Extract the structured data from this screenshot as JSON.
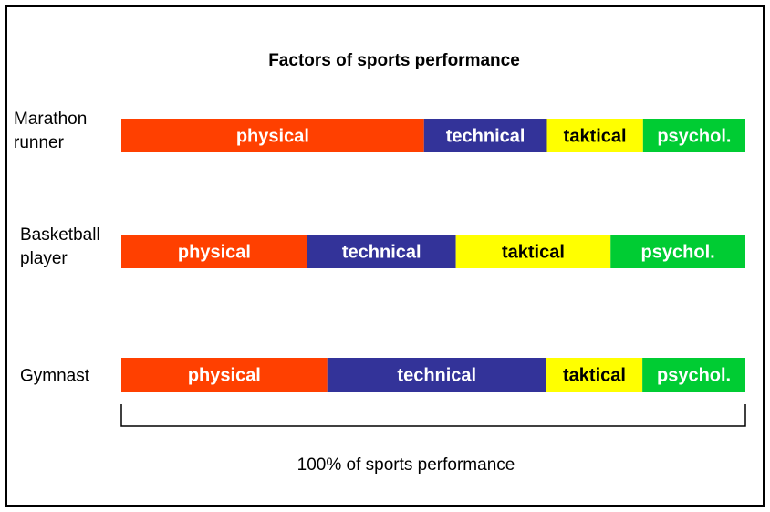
{
  "chart_data": {
    "type": "bar",
    "orientation": "horizontal",
    "stacked": true,
    "title": "Factors of sports performance",
    "caption": "100% of sports performance",
    "grid": false,
    "legend": "none",
    "categories": [
      {
        "label_lines": [
          "Marathon",
          "runner"
        ]
      },
      {
        "label_lines": [
          "Basketball",
          "player"
        ]
      },
      {
        "label_lines": [
          "Gymnast"
        ]
      }
    ],
    "series": [
      {
        "name": "physical",
        "label": "physical",
        "color": "#FF4000",
        "text_color": "#FFFFFF",
        "values": [
          48.5,
          29.8,
          33.0
        ]
      },
      {
        "name": "technical",
        "label": "technical",
        "color": "#333399",
        "text_color": "#FFFFFF",
        "values": [
          19.7,
          23.8,
          35.1
        ]
      },
      {
        "name": "taktical",
        "label": "taktical",
        "color": "#FFFF00",
        "text_color": "#000000",
        "values": [
          15.4,
          24.8,
          15.4
        ]
      },
      {
        "name": "psychol.",
        "label": "psychol.",
        "color": "#00CC33",
        "text_color": "#FFFFFF",
        "values": [
          16.4,
          21.6,
          16.5
        ]
      }
    ]
  }
}
